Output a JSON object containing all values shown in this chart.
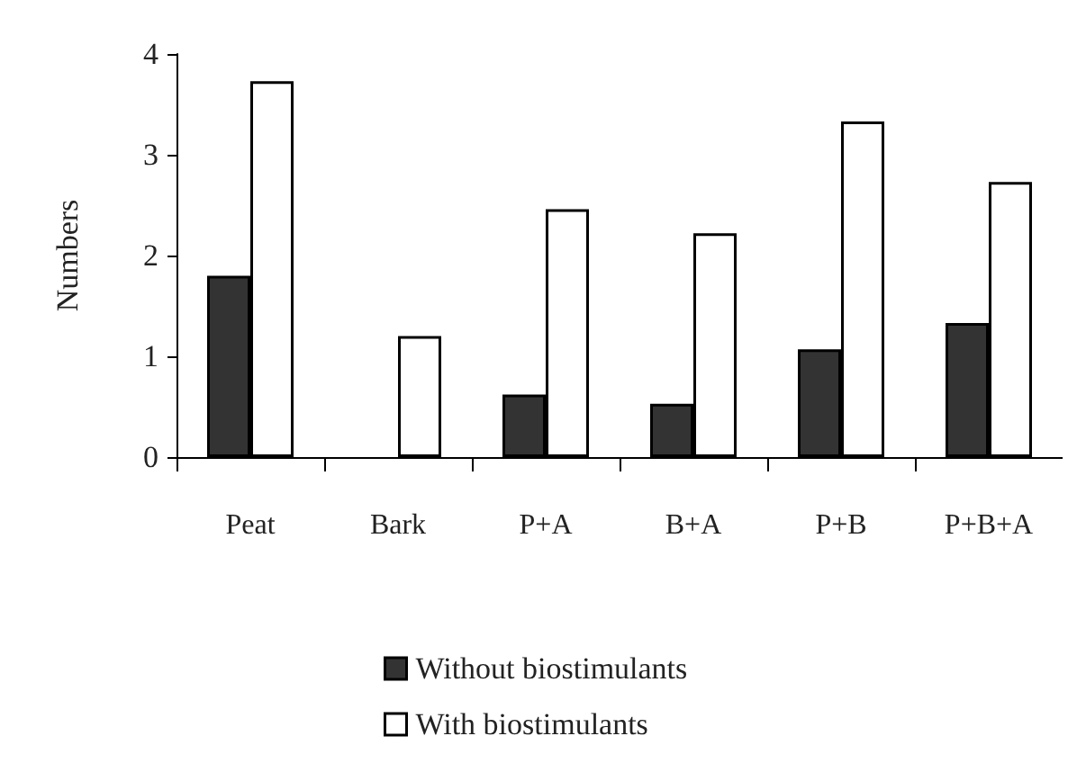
{
  "chart_data": {
    "type": "bar",
    "ylabel": "Numbers",
    "categories": [
      "Peat",
      "Bark",
      "P+A",
      "B+A",
      "P+B",
      "P+B+A"
    ],
    "series": [
      {
        "name": "Without biostimulants",
        "color": "#333333",
        "values": [
          1.8,
          0,
          0.62,
          0.53,
          1.07,
          1.33
        ]
      },
      {
        "name": "With biostimulants",
        "color": "#ffffff",
        "values": [
          3.73,
          1.2,
          2.46,
          2.22,
          3.33,
          2.73
        ]
      }
    ],
    "ylim": [
      0,
      4
    ],
    "yticks": [
      0,
      1,
      2,
      3,
      4
    ],
    "grid": false,
    "legend": "bottom"
  }
}
